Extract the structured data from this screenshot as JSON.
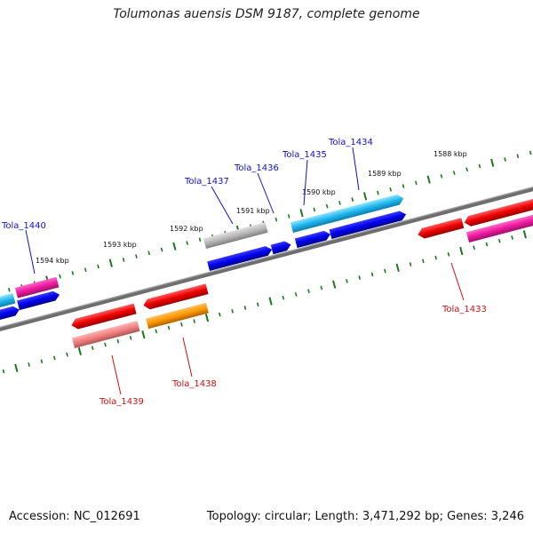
{
  "title": "Tolumonas auensis DSM 9187, complete genome",
  "footer": {
    "accession": "Accession: NC_012691",
    "summary": "Topology: circular; Length: 3,471,292 bp; Genes: 3,246"
  },
  "colors": {
    "backbone": "#808080",
    "tick": "#1a7a1a",
    "forward_label": "#1010cc",
    "reverse_label": "#cc1010"
  },
  "tick_labels": [
    "1588 kbp",
    "1589 kbp",
    "1590 kbp",
    "1591 kbp",
    "1592 kbp",
    "1593 kbp",
    "1594 kbp"
  ],
  "gene_labels": {
    "forward": [
      "Tola_1440",
      "Tola_1437",
      "Tola_1436",
      "Tola_1435",
      "Tola_1434"
    ],
    "reverse": [
      "Tola_1439",
      "Tola_1438",
      "Tola_1433"
    ]
  }
}
